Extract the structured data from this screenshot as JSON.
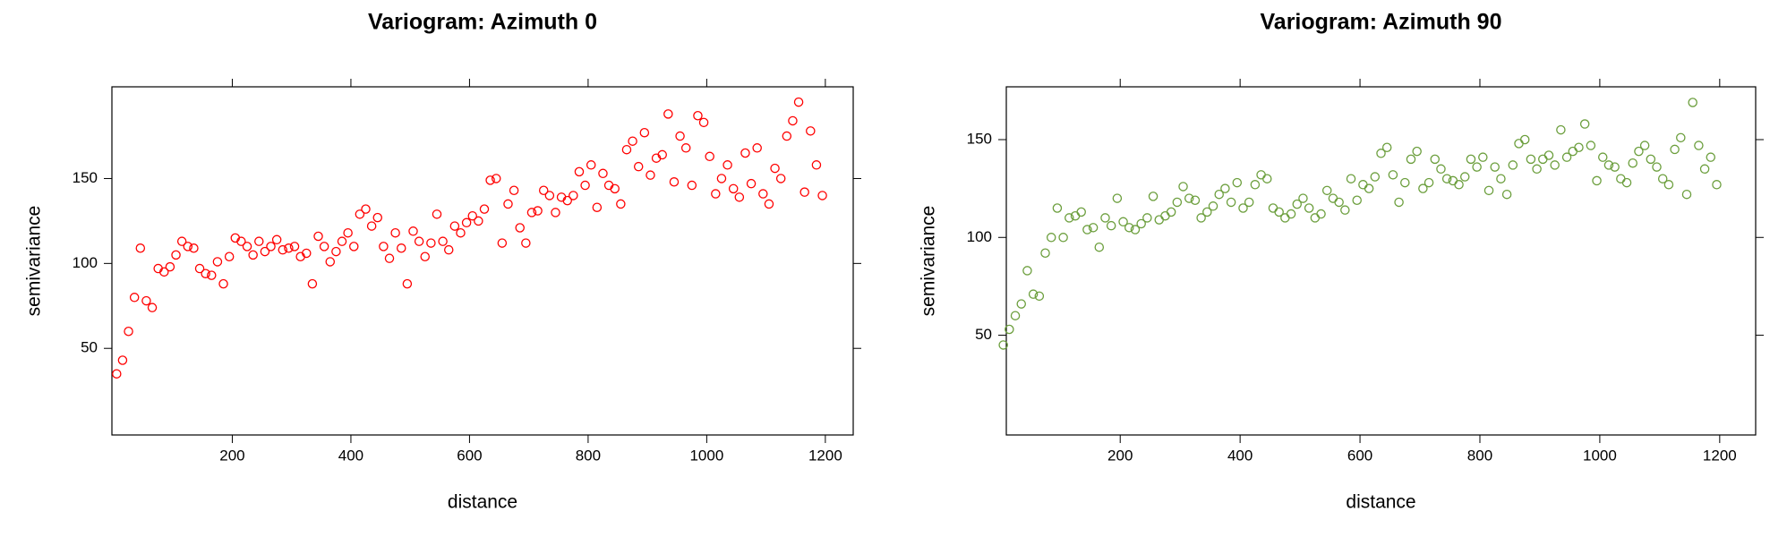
{
  "chart_data": [
    {
      "type": "scatter",
      "title": "Variogram: Azimuth 0",
      "x_label": "distance",
      "y_label": "semivariance",
      "color": "#ff0000",
      "xlim": [
        -3,
        1247
      ],
      "ylim": [
        -1,
        204
      ],
      "xticks": [
        200,
        400,
        600,
        800,
        1000,
        1200
      ],
      "yticks": [
        50,
        100,
        150
      ],
      "x": [
        5,
        15,
        25,
        35,
        45,
        55,
        65,
        75,
        85,
        95,
        105,
        115,
        125,
        135,
        145,
        155,
        165,
        175,
        185,
        195,
        205,
        215,
        225,
        235,
        245,
        255,
        265,
        275,
        285,
        295,
        305,
        315,
        325,
        335,
        345,
        355,
        365,
        375,
        385,
        395,
        405,
        415,
        425,
        435,
        445,
        455,
        465,
        475,
        485,
        495,
        505,
        515,
        525,
        535,
        545,
        555,
        565,
        575,
        585,
        595,
        605,
        615,
        625,
        635,
        645,
        655,
        665,
        675,
        685,
        695,
        705,
        715,
        725,
        735,
        745,
        755,
        765,
        775,
        785,
        795,
        805,
        815,
        825,
        835,
        845,
        855,
        865,
        875,
        885,
        895,
        905,
        915,
        925,
        935,
        945,
        955,
        965,
        975,
        985,
        995,
        1005,
        1015,
        1025,
        1035,
        1045,
        1055,
        1065,
        1075,
        1085,
        1095,
        1105,
        1115,
        1125,
        1135,
        1145,
        1155,
        1165,
        1175,
        1185,
        1195
      ],
      "values": [
        35,
        43,
        60,
        80,
        109,
        78,
        74,
        97,
        95,
        98,
        105,
        113,
        110,
        109,
        97,
        94,
        93,
        101,
        88,
        104,
        115,
        113,
        110,
        105,
        113,
        107,
        110,
        114,
        108,
        109,
        110,
        104,
        106,
        88,
        116,
        110,
        101,
        107,
        113,
        118,
        110,
        129,
        132,
        122,
        127,
        110,
        103,
        118,
        109,
        88,
        119,
        113,
        104,
        112,
        129,
        113,
        108,
        122,
        118,
        124,
        128,
        125,
        132,
        149,
        150,
        112,
        135,
        143,
        121,
        112,
        130,
        131,
        143,
        140,
        130,
        139,
        137,
        140,
        154,
        146,
        158,
        133,
        153,
        146,
        144,
        135,
        167,
        172,
        157,
        177,
        152,
        162,
        164,
        188,
        148,
        175,
        168,
        146,
        187,
        183,
        163,
        141,
        150,
        158,
        144,
        139,
        165,
        147,
        168,
        141,
        135,
        156,
        150,
        175,
        184,
        195,
        142,
        178,
        158,
        140
      ]
    },
    {
      "type": "scatter",
      "title": "Variogram: Azimuth 90",
      "x_label": "distance",
      "y_label": "semivariance",
      "color": "#6b9e3c",
      "xlim": [
        10,
        1260
      ],
      "ylim": [
        -1,
        177
      ],
      "xticks": [
        200,
        400,
        600,
        800,
        1000,
        1200
      ],
      "yticks": [
        50,
        100,
        150
      ],
      "x": [
        5,
        15,
        25,
        35,
        45,
        55,
        65,
        75,
        85,
        95,
        105,
        115,
        125,
        135,
        145,
        155,
        165,
        175,
        185,
        195,
        205,
        215,
        225,
        235,
        245,
        255,
        265,
        275,
        285,
        295,
        305,
        315,
        325,
        335,
        345,
        355,
        365,
        375,
        385,
        395,
        405,
        415,
        425,
        435,
        445,
        455,
        465,
        475,
        485,
        495,
        505,
        515,
        525,
        535,
        545,
        555,
        565,
        575,
        585,
        595,
        605,
        615,
        625,
        635,
        645,
        655,
        665,
        675,
        685,
        695,
        705,
        715,
        725,
        735,
        745,
        755,
        765,
        775,
        785,
        795,
        805,
        815,
        825,
        835,
        845,
        855,
        865,
        875,
        885,
        895,
        905,
        915,
        925,
        935,
        945,
        955,
        965,
        975,
        985,
        995,
        1005,
        1015,
        1025,
        1035,
        1045,
        1055,
        1065,
        1075,
        1085,
        1095,
        1105,
        1115,
        1125,
        1135,
        1145,
        1155,
        1165,
        1175,
        1185,
        1195
      ],
      "values": [
        45,
        53,
        60,
        66,
        83,
        71,
        70,
        92,
        100,
        115,
        100,
        110,
        111,
        113,
        104,
        105,
        95,
        110,
        106,
        120,
        108,
        105,
        104,
        107,
        110,
        121,
        109,
        111,
        113,
        118,
        126,
        120,
        119,
        110,
        113,
        116,
        122,
        125,
        118,
        128,
        115,
        118,
        127,
        132,
        130,
        115,
        113,
        110,
        112,
        117,
        120,
        115,
        110,
        112,
        124,
        120,
        118,
        114,
        130,
        119,
        127,
        125,
        131,
        143,
        146,
        132,
        118,
        128,
        140,
        144,
        125,
        128,
        140,
        135,
        130,
        129,
        127,
        131,
        140,
        136,
        141,
        124,
        136,
        130,
        122,
        137,
        148,
        150,
        140,
        135,
        140,
        142,
        137,
        155,
        141,
        144,
        146,
        158,
        147,
        129,
        141,
        137,
        136,
        130,
        128,
        138,
        144,
        147,
        140,
        136,
        130,
        127,
        145,
        151,
        122,
        169,
        147,
        135,
        141,
        127
      ]
    }
  ]
}
